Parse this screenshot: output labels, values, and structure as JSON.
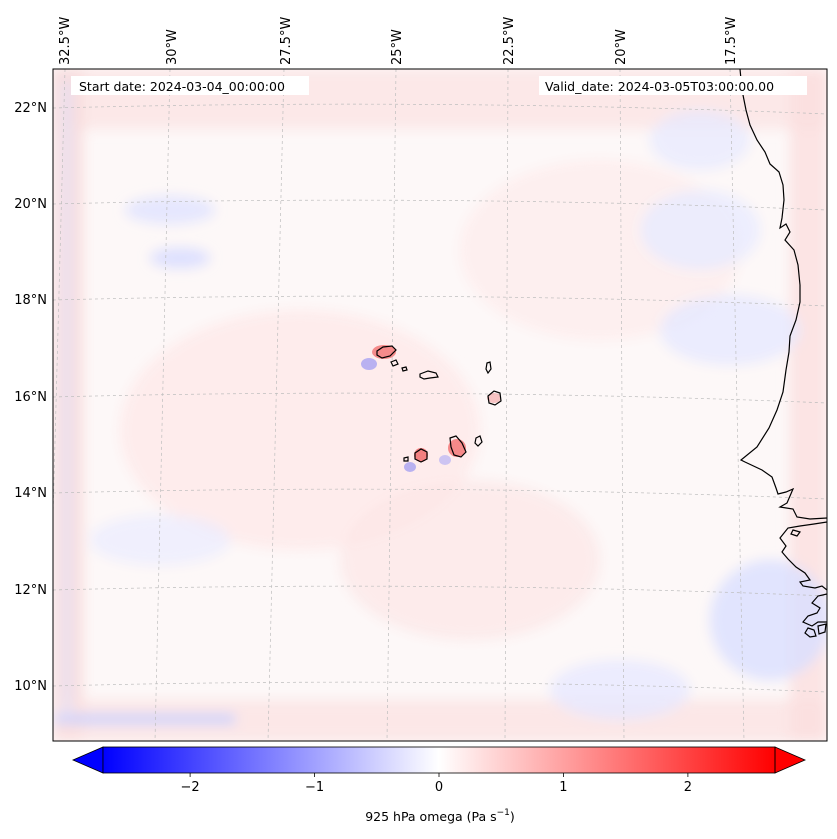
{
  "map": {
    "start_label": "Start date: 2024-03-04_00:00:00",
    "valid_label": "Valid_date: 2024-03-05T03:00:00.00",
    "lon_labels": [
      "32.5°W",
      "30°W",
      "27.5°W",
      "25°W",
      "22.5°W",
      "20°W",
      "17.5°W"
    ],
    "lat_labels": [
      "22°N",
      "20°N",
      "18°N",
      "16°N",
      "14°N",
      "12°N",
      "10°N"
    ],
    "features": [
      "cape-verde-islands",
      "west-africa-coastline"
    ]
  },
  "colorbar": {
    "label_main": "925 hPa omega (Pa s",
    "label_exp": "−1",
    "label_close": ")",
    "ticks": [
      "−2",
      "−1",
      "0",
      "1",
      "2"
    ],
    "vmin": -2.7,
    "vmax": 2.7,
    "extend": "both",
    "colormap": "bwr",
    "colors": {
      "negative": "#0000ff",
      "zero": "#ffffff",
      "positive": "#ff0000"
    }
  }
}
